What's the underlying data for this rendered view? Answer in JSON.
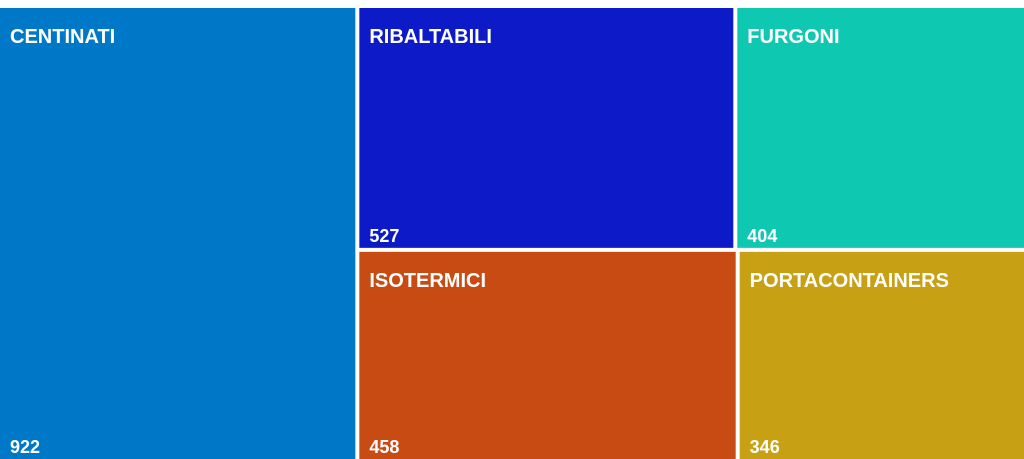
{
  "chart_data": {
    "type": "treemap",
    "categories": [
      "CENTINATI",
      "RIBALTABILI",
      "FURGONI",
      "ISOTERMICI",
      "PORTACONTAINERS"
    ],
    "values": [
      922,
      527,
      404,
      458,
      346
    ],
    "colors": [
      "#0078c8",
      "#0c1ac8",
      "#0fc8b1",
      "#c84b14",
      "#c8a014"
    ]
  }
}
